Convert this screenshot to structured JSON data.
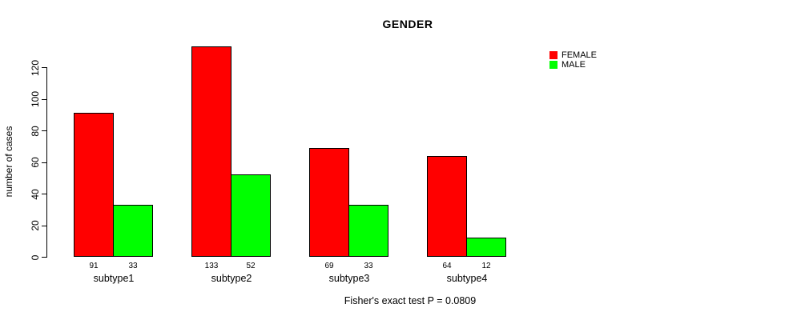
{
  "chart_data": {
    "type": "bar",
    "title": "GENDER",
    "ylabel": "number of cases",
    "xlabel": "",
    "categories": [
      "subtype1",
      "subtype2",
      "subtype3",
      "subtype4"
    ],
    "series": [
      {
        "name": "FEMALE",
        "color": "#FF0000",
        "values": [
          91,
          133,
          69,
          64
        ]
      },
      {
        "name": "MALE",
        "color": "#00FF00",
        "values": [
          33,
          52,
          33,
          12
        ]
      }
    ],
    "bar_value_labels_shown": true,
    "yticks": [
      0,
      20,
      40,
      60,
      80,
      100,
      120
    ],
    "ylim": [
      0,
      133
    ],
    "grid": false,
    "legend_position": "top-right",
    "caption": "Fisher's exact test P = 0.0809"
  }
}
